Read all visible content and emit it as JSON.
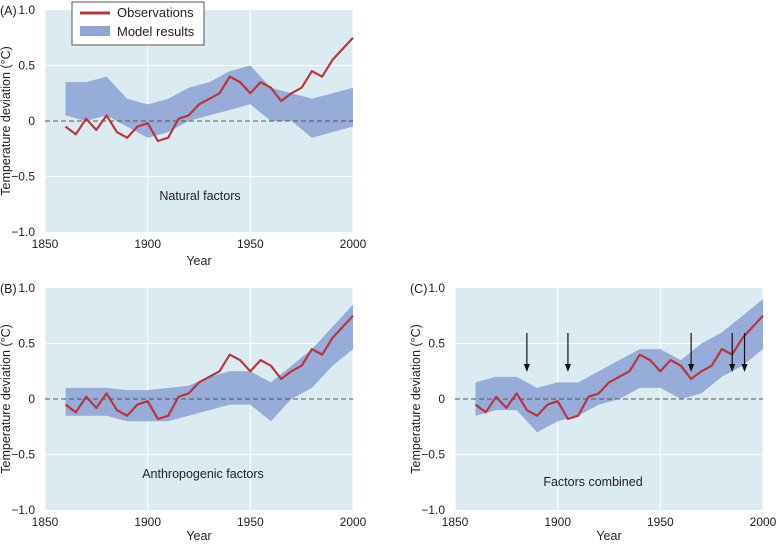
{
  "chart_data": [
    {
      "type": "line",
      "panel_label": "(A)",
      "annotation": "Natural factors",
      "xlabel": "Year",
      "ylabel": "Temperature deviation (°C)",
      "xlim": [
        1850,
        2000
      ],
      "ylim": [
        -1.0,
        1.0
      ],
      "xticks": [
        1850,
        1900,
        1950,
        2000
      ],
      "yticks": [
        "1.0",
        "0.5",
        "0",
        "−0.5",
        "−1.0"
      ],
      "series": [
        {
          "name": "Observations",
          "x": [
            1860,
            1865,
            1870,
            1875,
            1880,
            1885,
            1890,
            1895,
            1900,
            1905,
            1910,
            1915,
            1920,
            1925,
            1930,
            1935,
            1940,
            1945,
            1950,
            1955,
            1960,
            1965,
            1970,
            1975,
            1980,
            1985,
            1990,
            1995,
            2000
          ],
          "values": [
            -0.05,
            -0.12,
            0.02,
            -0.08,
            0.05,
            -0.1,
            -0.15,
            -0.05,
            -0.02,
            -0.18,
            -0.15,
            0.02,
            0.05,
            0.15,
            0.2,
            0.25,
            0.4,
            0.35,
            0.25,
            0.35,
            0.3,
            0.18,
            0.25,
            0.3,
            0.45,
            0.4,
            0.55,
            0.65,
            0.75
          ]
        },
        {
          "name": "Model results",
          "x": [
            1860,
            1870,
            1880,
            1890,
            1900,
            1910,
            1920,
            1930,
            1940,
            1950,
            1960,
            1970,
            1980,
            1990,
            2000
          ],
          "lower": [
            0.05,
            0.0,
            0.05,
            -0.05,
            -0.15,
            -0.1,
            0.0,
            0.05,
            0.1,
            0.15,
            0.0,
            0.0,
            -0.15,
            -0.1,
            -0.05
          ],
          "upper": [
            0.35,
            0.35,
            0.4,
            0.2,
            0.15,
            0.2,
            0.3,
            0.35,
            0.45,
            0.5,
            0.3,
            0.25,
            0.2,
            0.25,
            0.3
          ]
        }
      ]
    },
    {
      "type": "line",
      "panel_label": "(B)",
      "annotation": "Anthropogenic factors",
      "xlabel": "Year",
      "ylabel": "Temperature deviation (°C)",
      "xlim": [
        1850,
        2000
      ],
      "ylim": [
        -1.0,
        1.0
      ],
      "xticks": [
        1850,
        1900,
        1950,
        2000
      ],
      "yticks": [
        "1.0",
        "0.5",
        "0",
        "−0.5",
        "−1.0"
      ],
      "series": [
        {
          "name": "Observations",
          "x": [
            1860,
            1865,
            1870,
            1875,
            1880,
            1885,
            1890,
            1895,
            1900,
            1905,
            1910,
            1915,
            1920,
            1925,
            1930,
            1935,
            1940,
            1945,
            1950,
            1955,
            1960,
            1965,
            1970,
            1975,
            1980,
            1985,
            1990,
            1995,
            2000
          ],
          "values": [
            -0.05,
            -0.12,
            0.02,
            -0.08,
            0.05,
            -0.1,
            -0.15,
            -0.05,
            -0.02,
            -0.18,
            -0.15,
            0.02,
            0.05,
            0.15,
            0.2,
            0.25,
            0.4,
            0.35,
            0.25,
            0.35,
            0.3,
            0.18,
            0.25,
            0.3,
            0.45,
            0.4,
            0.55,
            0.65,
            0.75
          ]
        },
        {
          "name": "Model results",
          "x": [
            1860,
            1870,
            1880,
            1890,
            1900,
            1910,
            1920,
            1930,
            1940,
            1950,
            1960,
            1970,
            1980,
            1990,
            2000
          ],
          "lower": [
            -0.15,
            -0.15,
            -0.15,
            -0.2,
            -0.2,
            -0.2,
            -0.15,
            -0.1,
            -0.05,
            -0.05,
            -0.2,
            0.0,
            0.1,
            0.3,
            0.45
          ],
          "upper": [
            0.1,
            0.1,
            0.1,
            0.08,
            0.08,
            0.1,
            0.12,
            0.2,
            0.25,
            0.25,
            0.15,
            0.3,
            0.45,
            0.65,
            0.85
          ]
        }
      ]
    },
    {
      "type": "line",
      "panel_label": "(C)",
      "annotation": "Factors combined",
      "xlabel": "Year",
      "ylabel": "Temperature deviation (°C)",
      "xlim": [
        1850,
        2000
      ],
      "ylim": [
        -1.0,
        1.0
      ],
      "xticks": [
        1850,
        1900,
        1950,
        2000
      ],
      "yticks": [
        "1.0",
        "0.5",
        "0",
        "−0.5",
        "−1.0"
      ],
      "arrows_at_years": [
        1885,
        1905,
        1965,
        1985,
        1991
      ],
      "series": [
        {
          "name": "Observations",
          "x": [
            1860,
            1865,
            1870,
            1875,
            1880,
            1885,
            1890,
            1895,
            1900,
            1905,
            1910,
            1915,
            1920,
            1925,
            1930,
            1935,
            1940,
            1945,
            1950,
            1955,
            1960,
            1965,
            1970,
            1975,
            1980,
            1985,
            1990,
            1995,
            2000
          ],
          "values": [
            -0.05,
            -0.12,
            0.02,
            -0.08,
            0.05,
            -0.1,
            -0.15,
            -0.05,
            -0.02,
            -0.18,
            -0.15,
            0.02,
            0.05,
            0.15,
            0.2,
            0.25,
            0.4,
            0.35,
            0.25,
            0.35,
            0.3,
            0.18,
            0.25,
            0.3,
            0.45,
            0.4,
            0.55,
            0.65,
            0.75
          ]
        },
        {
          "name": "Model results",
          "x": [
            1860,
            1870,
            1880,
            1890,
            1900,
            1910,
            1920,
            1930,
            1940,
            1950,
            1960,
            1970,
            1980,
            1990,
            2000
          ],
          "lower": [
            -0.15,
            -0.1,
            -0.1,
            -0.3,
            -0.2,
            -0.15,
            -0.05,
            0.0,
            0.1,
            0.1,
            0.0,
            0.05,
            0.2,
            0.3,
            0.45
          ],
          "upper": [
            0.15,
            0.2,
            0.2,
            0.1,
            0.15,
            0.15,
            0.25,
            0.35,
            0.45,
            0.45,
            0.35,
            0.5,
            0.6,
            0.75,
            0.9
          ]
        }
      ]
    }
  ],
  "legend": {
    "observations": "Observations",
    "model": "Model results"
  },
  "colors": {
    "panel_bg": "#dcebf2",
    "observations": "#b5383d",
    "model": "#8fa5d6"
  }
}
